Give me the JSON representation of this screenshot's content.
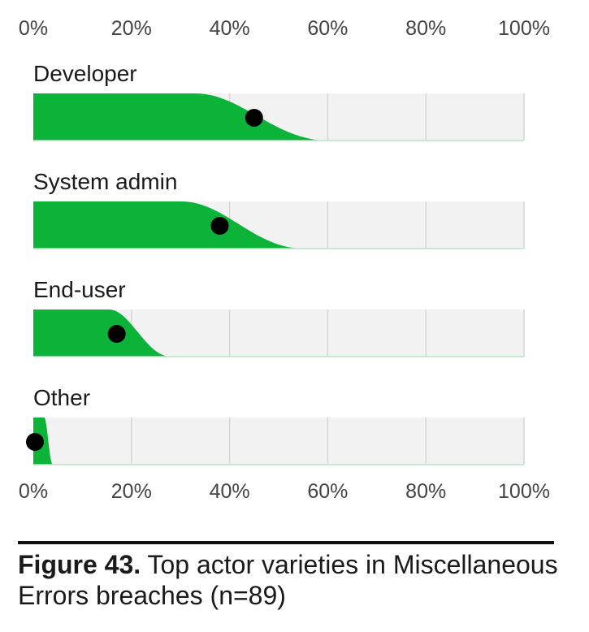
{
  "chart_data": {
    "type": "area",
    "description": "Slanted-bar distribution chart: each category shows a green shaded interval with a black dot marking the point estimate.",
    "x_ticks": [
      "0%",
      "20%",
      "40%",
      "60%",
      "80%",
      "100%"
    ],
    "xlim": [
      0,
      100
    ],
    "grid": true,
    "series": [
      {
        "name": "Developer",
        "value": 45,
        "interval": [
          0,
          60
        ]
      },
      {
        "name": "System admin",
        "value": 38,
        "interval": [
          0,
          55
        ]
      },
      {
        "name": "End-user",
        "value": 17,
        "interval": [
          0,
          28
        ]
      },
      {
        "name": "Other",
        "value": 0,
        "interval": [
          0,
          4
        ]
      }
    ],
    "colors": {
      "fill": "#0bb339",
      "track": "#f2f2f2",
      "gridline": "#d6d6d6",
      "dot": "#000000"
    }
  },
  "caption": {
    "label": "Figure 43.",
    "text": " Top actor varieties in Miscellaneous Errors breaches (n=89)"
  }
}
